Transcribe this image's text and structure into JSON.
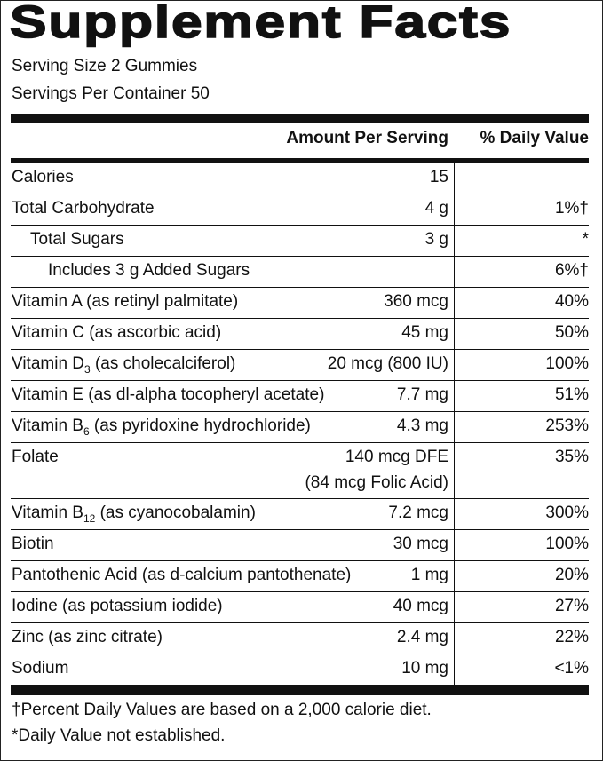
{
  "header": {
    "title": "Supplement Facts",
    "serving_size": "Serving Size 2 Gummies",
    "servings_per_container": "Servings Per Container 50"
  },
  "table": {
    "columns": [
      "Amount Per Serving",
      "% Daily Value"
    ],
    "rows": [
      {
        "name": "Calories",
        "amount": "15"
      },
      {
        "name": "Total Carbohydrate",
        "amount": "4 g",
        "daily_value": "1%†"
      },
      {
        "name": "Total Sugars",
        "amount": "3 g",
        "daily_value": "*"
      },
      {
        "name": "Includes 3 g Added Sugars",
        "daily_value": "6%†"
      },
      {
        "name": "Vitamin A (as retinyl palmitate)",
        "amount": "360 mcg",
        "daily_value": "40%"
      },
      {
        "name": "Vitamin C (as ascorbic acid)",
        "amount": "45 mg",
        "daily_value": "50%"
      },
      {
        "name": "Vitamin D",
        "name_sub": "3",
        "name_rest": " (as cholecalciferol)",
        "amount": "20 mcg (800 IU)",
        "daily_value": "100%"
      },
      {
        "name": "Vitamin E (as dl-alpha tocopheryl acetate)",
        "amount": "7.7 mg",
        "daily_value": "51%"
      },
      {
        "name": "Vitamin B",
        "name_sub": "6",
        "name_rest": " (as pyridoxine hydrochloride)",
        "amount": "4.3 mg",
        "daily_value": "253%"
      },
      {
        "name": "Folate",
        "amount": "140 mcg DFE",
        "amount_note": "(84 mcg Folic Acid)",
        "daily_value": "35%"
      },
      {
        "name": "Vitamin B",
        "name_sub": "12",
        "name_rest": " (as cyanocobalamin)",
        "amount": "7.2 mcg",
        "daily_value": "300%"
      },
      {
        "name": "Biotin",
        "amount": "30 mcg",
        "daily_value": "100%"
      },
      {
        "name": "Pantothenic Acid (as d-calcium pantothenate)",
        "amount": "1 mg",
        "daily_value": "20%"
      },
      {
        "name": "Iodine (as potassium iodide)",
        "amount": "40 mcg",
        "daily_value": "27%"
      },
      {
        "name": "Zinc (as zinc citrate)",
        "amount": "2.4 mg",
        "daily_value": "22%"
      },
      {
        "name": "Sodium",
        "amount": "10 mg",
        "daily_value": "<1%"
      }
    ]
  },
  "footnotes": [
    "†Percent Daily Values are based on a 2,000 calorie diet.",
    "*Daily Value not established."
  ]
}
